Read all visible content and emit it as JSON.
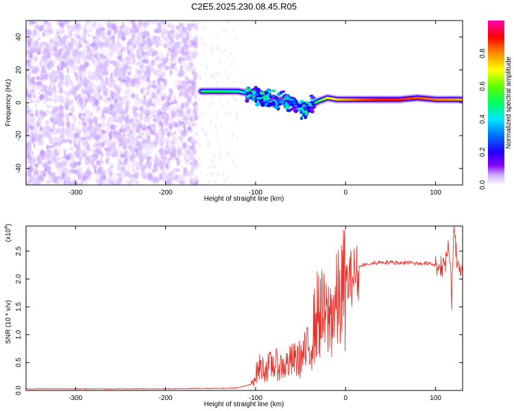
{
  "title": "C2E5.2025.230.08.45.R05",
  "chart_data": [
    {
      "type": "heatmap",
      "xlabel": "Height of straight line (km)",
      "ylabel": "Frequency (Hz)",
      "xlim": [
        -355,
        130
      ],
      "ylim": [
        -50,
        50
      ],
      "xticks": [
        -300,
        -200,
        -100,
        0,
        100
      ],
      "yticks": [
        -40,
        -20,
        0,
        20,
        40
      ],
      "colorbar": {
        "label": "Normalized spectral amplitude",
        "range": [
          0.0,
          1.0
        ],
        "ticks": [
          "0.0",
          "0.2",
          "0.4",
          "0.6",
          "0.8"
        ],
        "tick_values": [
          0.0,
          0.2,
          0.4,
          0.6,
          0.8
        ],
        "colors": [
          "#ffffff",
          "#d0b0ff",
          "#8000ff",
          "#0000ff",
          "#00e0ff",
          "#00ff40",
          "#ffff00",
          "#ff8000",
          "#ff0000",
          "#ff00aa"
        ]
      },
      "noise_region": {
        "x": [
          -355,
          -165
        ],
        "level": "low"
      },
      "signal_ridge": {
        "x": [
          -160,
          -140,
          -120,
          -100,
          -90,
          -80,
          -70,
          -60,
          -50,
          -45,
          -40,
          -30,
          -20,
          -10,
          0,
          20,
          40,
          60,
          80,
          100,
          130
        ],
        "y": [
          7,
          7,
          7,
          5,
          3,
          2,
          1,
          0,
          -3,
          -5,
          -2,
          1,
          3,
          2,
          2,
          2,
          2,
          2,
          3,
          2,
          2
        ],
        "amplitude": [
          0.5,
          0.5,
          0.45,
          0.4,
          0.45,
          0.5,
          0.45,
          0.4,
          0.4,
          0.4,
          0.45,
          0.55,
          0.65,
          0.7,
          0.75,
          0.85,
          0.9,
          0.9,
          0.85,
          0.8,
          0.75
        ]
      }
    },
    {
      "type": "line",
      "xlabel": "Height of straight line (km)",
      "ylabel": "SNR (10 * v/v)",
      "y_multiplier": "(x10",
      "y_multiplier_exp": "4",
      "y_multiplier_close": ")",
      "xlim": [
        -355,
        130
      ],
      "ylim": [
        0.0,
        2.95
      ],
      "xticks": [
        -300,
        -200,
        -100,
        0,
        100
      ],
      "yticks": [
        0.0,
        0.5,
        1.0,
        1.5,
        2.0,
        2.5
      ],
      "ytick_labels": [
        "0.0",
        "0.5",
        "1.0",
        "1.5",
        "2.0",
        "2.5"
      ],
      "color": "#e8332d",
      "series": [
        {
          "x": [
            -355,
            -300,
            -250,
            -200,
            -160,
            -140,
            -120,
            -105,
            -100,
            -95,
            -90,
            -80,
            -70,
            -60,
            -50,
            -40,
            -35,
            -30,
            -25,
            -20,
            -15,
            -10,
            -5,
            0,
            5,
            10,
            20,
            30,
            40,
            50,
            60,
            70,
            80,
            90,
            100,
            105,
            110,
            115,
            118,
            120,
            125,
            130
          ],
          "y": [
            0.02,
            0.02,
            0.02,
            0.02,
            0.03,
            0.03,
            0.04,
            0.1,
            0.3,
            0.45,
            0.4,
            0.5,
            0.45,
            0.55,
            0.6,
            0.8,
            1.2,
            1.5,
            1.4,
            1.3,
            1.5,
            1.6,
            1.8,
            2.0,
            2.1,
            2.2,
            2.25,
            2.28,
            2.3,
            2.3,
            2.29,
            2.3,
            2.28,
            2.28,
            2.25,
            2.22,
            2.3,
            2.5,
            1.7,
            2.85,
            2.2,
            2.2
          ]
        }
      ]
    }
  ]
}
